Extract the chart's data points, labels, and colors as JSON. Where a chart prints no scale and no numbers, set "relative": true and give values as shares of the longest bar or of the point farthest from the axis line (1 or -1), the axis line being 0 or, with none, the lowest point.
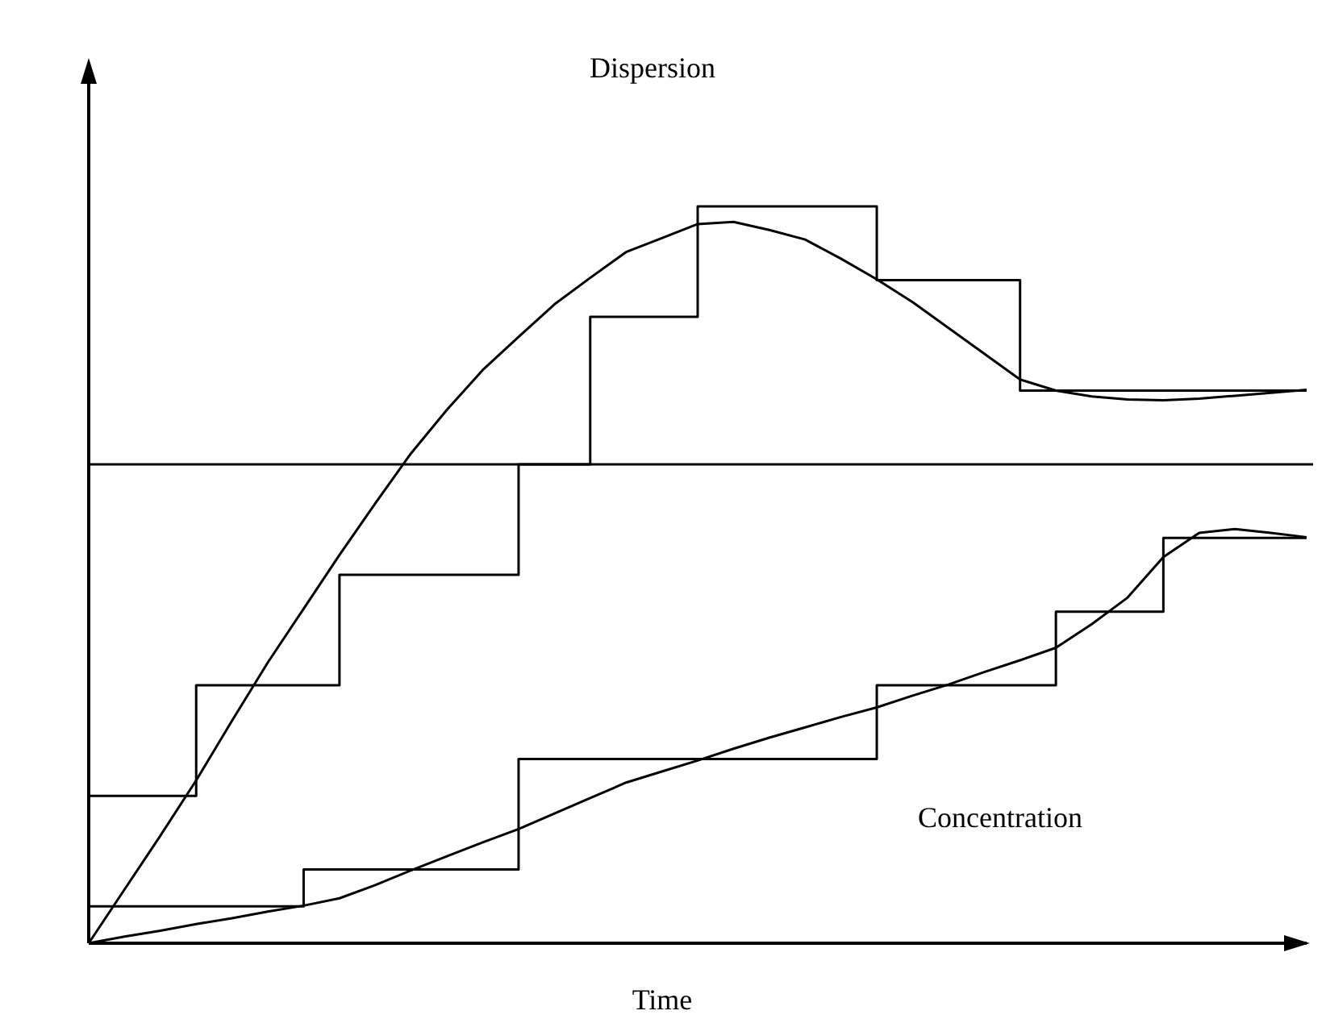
{
  "chart_data": {
    "type": "line",
    "relative": true,
    "xlabel": "Time",
    "marker": "none",
    "line_style": "solid",
    "categories": [
      null,
      null,
      null,
      null,
      null,
      null,
      null,
      null,
      null,
      null,
      null,
      null,
      null,
      null,
      null,
      null,
      null,
      null,
      null,
      null,
      null,
      null,
      null,
      null,
      null,
      null,
      null,
      null,
      null,
      null,
      null,
      null,
      null,
      null,
      null
    ],
    "annotations": [
      "Dispersion",
      "Concentration"
    ],
    "ref_lines": [
      {
        "axis": "y",
        "value": 0.65,
        "color": "#000000"
      }
    ],
    "series": [
      {
        "type": "step",
        "color": "#000000",
        "values": [
          0.2,
          0.2,
          0.2,
          0.35,
          0.35,
          0.35,
          0.35,
          0.5,
          0.5,
          0.5,
          0.5,
          0.5,
          0.65,
          0.65,
          0.85,
          0.85,
          0.85,
          1,
          1,
          1,
          1,
          1,
          0.9,
          0.9,
          0.9,
          0.9,
          0.75,
          0.75,
          0.75,
          0.75,
          0.75,
          0.75,
          0.75,
          0.75,
          0.75
        ]
      },
      {
        "color": "#000000",
        "values": [
          0,
          0.073,
          0.146,
          0.221,
          0.302,
          0.381,
          0.454,
          0.527,
          0.597,
          0.665,
          0.724,
          0.778,
          0.823,
          0.867,
          0.903,
          0.938,
          0.957,
          0.976,
          0.979,
          0.968,
          0.955,
          0.929,
          0.901,
          0.87,
          0.835,
          0.8,
          0.765,
          0.75,
          0.742,
          0.738,
          0.737,
          0.739,
          0.743,
          0.747,
          0.751
        ]
      },
      {
        "type": "step",
        "color": "#000000",
        "values": [
          0.05,
          0.05,
          0.05,
          0.05,
          0.05,
          0.05,
          0.1,
          0.1,
          0.1,
          0.1,
          0.1,
          0.1,
          0.25,
          0.25,
          0.25,
          0.25,
          0.25,
          0.25,
          0.25,
          0.25,
          0.25,
          0.25,
          0.35,
          0.35,
          0.35,
          0.35,
          0.35,
          0.45,
          0.45,
          0.45,
          0.55,
          0.55,
          0.55,
          0.55,
          0.55
        ]
      },
      {
        "color": "#000000",
        "values": [
          0,
          0.009,
          0.017,
          0.026,
          0.034,
          0.043,
          0.051,
          0.061,
          0.079,
          0.099,
          0.118,
          0.137,
          0.155,
          0.176,
          0.197,
          0.218,
          0.233,
          0.248,
          0.264,
          0.279,
          0.293,
          0.307,
          0.32,
          0.336,
          0.351,
          0.368,
          0.384,
          0.401,
          0.433,
          0.469,
          0.524,
          0.557,
          0.562,
          0.557,
          0.551
        ]
      }
    ]
  }
}
